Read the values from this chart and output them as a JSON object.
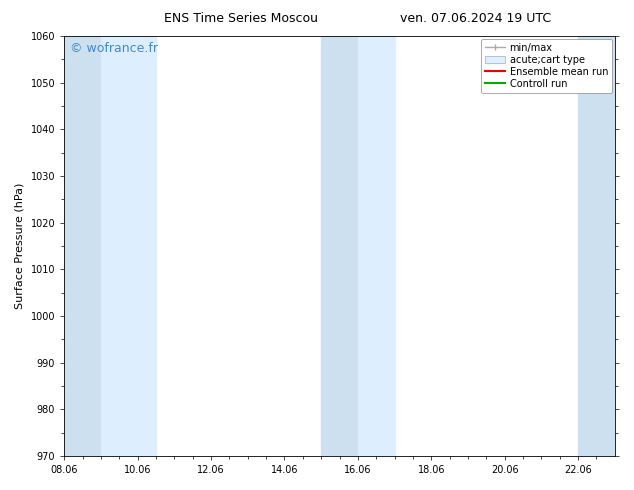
{
  "title_left": "ENS Time Series Moscou",
  "title_right": "ven. 07.06.2024 19 UTC",
  "ylabel": "Surface Pressure (hPa)",
  "xlim": [
    8.06,
    23.06
  ],
  "ylim": [
    970,
    1060
  ],
  "yticks": [
    970,
    980,
    990,
    1000,
    1010,
    1020,
    1030,
    1040,
    1050,
    1060
  ],
  "xticks": [
    8.06,
    10.06,
    12.06,
    14.06,
    16.06,
    18.06,
    20.06,
    22.06
  ],
  "xticklabels": [
    "08.06",
    "10.06",
    "12.06",
    "14.06",
    "16.06",
    "18.06",
    "20.06",
    "22.06"
  ],
  "watermark": "© wofrance.fr",
  "watermark_color": "#4488cc",
  "bg_color": "#ffffff",
  "plot_bg_color": "#ffffff",
  "shaded_bands": [
    {
      "xmin": 8.06,
      "xmax": 9.06,
      "color": "#cce0f0"
    },
    {
      "xmin": 9.06,
      "xmax": 10.56,
      "color": "#ddeeff"
    },
    {
      "xmin": 15.06,
      "xmax": 16.06,
      "color": "#cce0f0"
    },
    {
      "xmin": 16.06,
      "xmax": 17.06,
      "color": "#ddeeff"
    },
    {
      "xmin": 22.06,
      "xmax": 23.06,
      "color": "#cce0f0"
    }
  ],
  "legend_entries": [
    {
      "label": "min/max",
      "color": "#aaaaaa",
      "lw": 1.0,
      "style": "minmax"
    },
    {
      "label": "acute;cart type",
      "color": "#aaaaaa",
      "lw": 3.0,
      "style": "fill"
    },
    {
      "label": "Ensemble mean run",
      "color": "#ee0000",
      "lw": 1.5,
      "style": "line"
    },
    {
      "label": "Controll run",
      "color": "#00aa00",
      "lw": 1.5,
      "style": "line"
    }
  ],
  "font_size_title": 9,
  "font_size_labels": 8,
  "font_size_ticks": 7,
  "font_size_watermark": 9,
  "font_size_legend": 7
}
